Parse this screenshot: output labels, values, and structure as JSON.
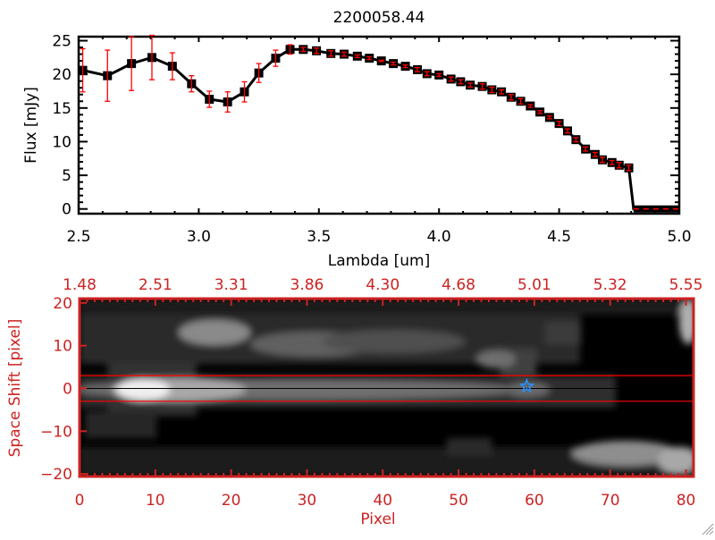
{
  "colors": {
    "axis_bottom": "#cc2222",
    "errorbar": "#ff0000",
    "star": "#2a8cf0",
    "aperture": "#ff0000"
  },
  "chart_data": [
    {
      "type": "line",
      "title": "2200058.44",
      "xlabel": "Lambda [um]",
      "ylabel": "Flux [mJy]",
      "xlim": [
        2.5,
        5.0
      ],
      "ylim": [
        -0.7,
        25.6
      ],
      "xticks": [
        "2.5",
        "3.0",
        "3.5",
        "4.0",
        "4.5",
        "5.0"
      ],
      "yticks": [
        "0",
        "5",
        "10",
        "15",
        "20",
        "25"
      ],
      "x": [
        2.517,
        2.62,
        2.72,
        2.805,
        2.89,
        2.97,
        3.044,
        3.12,
        3.19,
        3.25,
        3.32,
        3.38,
        3.435,
        3.49,
        3.55,
        3.605,
        3.66,
        3.71,
        3.76,
        3.81,
        3.86,
        3.91,
        3.95,
        4.0,
        4.05,
        4.09,
        4.13,
        4.18,
        4.22,
        4.26,
        4.3,
        4.34,
        4.38,
        4.42,
        4.46,
        4.5,
        4.535,
        4.57,
        4.61,
        4.65,
        4.68,
        4.72,
        4.75,
        4.79,
        4.81,
        4.9,
        5.0
      ],
      "y": [
        20.6,
        19.8,
        21.6,
        22.5,
        21.2,
        18.6,
        16.3,
        15.9,
        17.4,
        20.2,
        22.4,
        23.7,
        23.7,
        23.5,
        23.1,
        23.0,
        22.7,
        22.4,
        22.0,
        21.6,
        21.2,
        20.7,
        20.1,
        19.9,
        19.3,
        18.9,
        18.4,
        18.2,
        17.7,
        17.4,
        16.6,
        16.0,
        15.3,
        14.4,
        13.6,
        12.7,
        11.6,
        10.3,
        8.9,
        8.1,
        7.3,
        6.9,
        6.5,
        6.1,
        0,
        0,
        0
      ],
      "err": [
        3.2,
        3.8,
        4.0,
        3.3,
        2.0,
        1.2,
        1.2,
        1.5,
        1.5,
        1.4,
        1.2,
        0.7,
        0.3,
        0.4,
        0.4,
        0.3,
        0.2,
        0.2,
        0.1,
        0.2,
        0.2,
        0.3,
        0.3,
        0.2,
        0.3,
        0.3,
        0.3,
        0.4,
        0.4,
        0.3,
        0.4,
        0.4,
        0.2,
        0.2,
        0.2,
        0.3,
        0.3,
        0.3,
        0.3,
        0.3,
        0.4,
        0.3,
        0.4,
        0.4,
        0,
        0,
        0
      ]
    },
    {
      "type": "heatmap",
      "xlabel": "Pixel",
      "ylabel": "Space Shift [pixel]",
      "xlim": [
        0,
        81
      ],
      "ylim": [
        -20.6,
        21
      ],
      "xticks": [
        "0",
        "10",
        "20",
        "30",
        "40",
        "50",
        "60",
        "70",
        "80"
      ],
      "yticks": [
        "-20",
        "-10",
        "0",
        "10",
        "20"
      ],
      "top_axis_ticks": [
        "1.48",
        "2.51",
        "3.31",
        "3.86",
        "4.30",
        "4.68",
        "5.01",
        "5.32",
        "5.55"
      ],
      "aperture_lines": [
        3,
        -3
      ],
      "center_line": 0,
      "source_marker": {
        "pixel": 59,
        "shift": 0.5
      }
    }
  ]
}
